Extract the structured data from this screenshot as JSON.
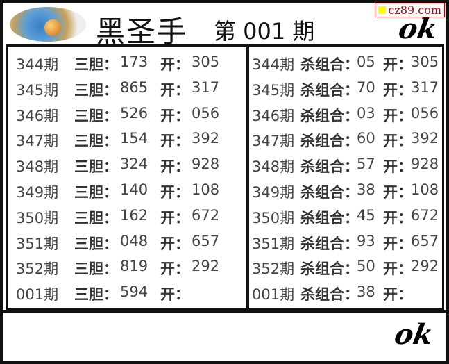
{
  "header": {
    "title": "黑圣手",
    "issue": "第 001 期",
    "watermark": "cz89.com",
    "signature": "ok"
  },
  "left": {
    "label": "三胆：",
    "open_label": "开：",
    "rows": [
      {
        "period": "344期",
        "value": "173",
        "open": "305"
      },
      {
        "period": "345期",
        "value": "865",
        "open": "317"
      },
      {
        "period": "346期",
        "value": "526",
        "open": "056"
      },
      {
        "period": "347期",
        "value": "154",
        "open": "392"
      },
      {
        "period": "348期",
        "value": "324",
        "open": "928"
      },
      {
        "period": "349期",
        "value": "140",
        "open": "108"
      },
      {
        "period": "350期",
        "value": "162",
        "open": "672"
      },
      {
        "period": "351期",
        "value": "048",
        "open": "657"
      },
      {
        "period": "352期",
        "value": "819",
        "open": "292"
      },
      {
        "period": "001期",
        "value": "594",
        "open": ""
      }
    ]
  },
  "right": {
    "label": "杀组合：",
    "open_label": "开：",
    "rows": [
      {
        "period": "344期",
        "value": "05",
        "open": "305"
      },
      {
        "period": "345期",
        "value": "70",
        "open": "317"
      },
      {
        "period": "346期",
        "value": "03",
        "open": "056"
      },
      {
        "period": "347期",
        "value": "60",
        "open": "392"
      },
      {
        "period": "348期",
        "value": "57",
        "open": "928"
      },
      {
        "period": "349期",
        "value": "38",
        "open": "108"
      },
      {
        "period": "350期",
        "value": "45",
        "open": "672"
      },
      {
        "period": "351期",
        "value": "93",
        "open": "657"
      },
      {
        "period": "352期",
        "value": "50",
        "open": "292"
      },
      {
        "period": "001期",
        "value": "38",
        "open": ""
      }
    ]
  }
}
